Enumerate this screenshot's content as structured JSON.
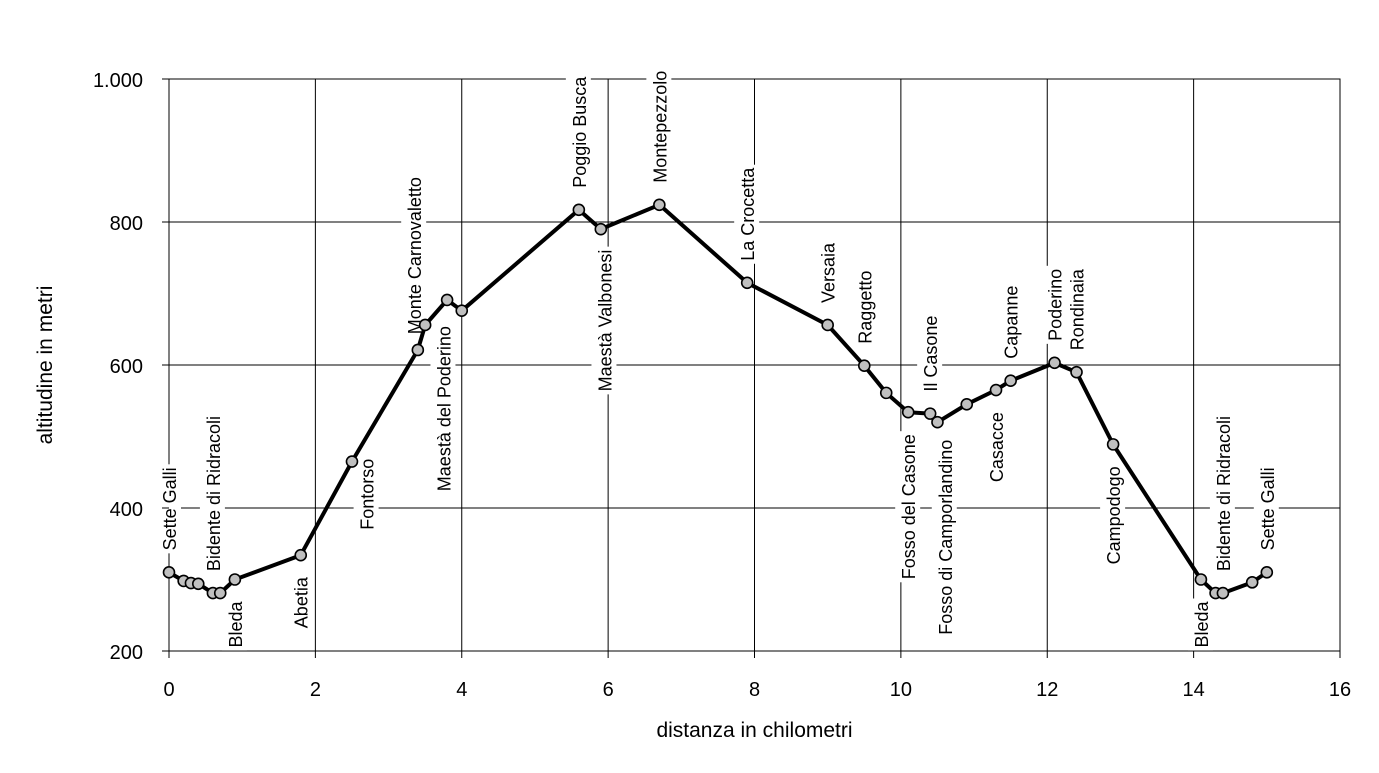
{
  "chart_data": {
    "type": "line",
    "title": "",
    "xlabel": "distanza in chilometri",
    "ylabel": "altitudine  in metri",
    "xlim": [
      0,
      16
    ],
    "ylim": [
      200,
      1000
    ],
    "x_ticks": [
      0,
      2,
      4,
      6,
      8,
      10,
      12,
      14,
      16
    ],
    "x_tick_labels": [
      "0",
      "2",
      "4",
      "6",
      "8",
      "10",
      "12",
      "14",
      "16"
    ],
    "y_ticks": [
      200,
      400,
      600,
      800,
      1000
    ],
    "y_tick_labels": [
      "200",
      "400",
      "600",
      "800",
      "1.000"
    ],
    "grid": true,
    "legend": "none",
    "series": [
      {
        "points": [
          {
            "x": 0.0,
            "y": 310
          },
          {
            "x": 0.2,
            "y": 298
          },
          {
            "x": 0.3,
            "y": 295
          },
          {
            "x": 0.4,
            "y": 294
          },
          {
            "x": 0.6,
            "y": 281
          },
          {
            "x": 0.7,
            "y": 281
          },
          {
            "x": 0.9,
            "y": 300
          },
          {
            "x": 1.8,
            "y": 334
          },
          {
            "x": 2.5,
            "y": 465
          },
          {
            "x": 3.4,
            "y": 621
          },
          {
            "x": 3.5,
            "y": 656
          },
          {
            "x": 3.8,
            "y": 691
          },
          {
            "x": 4.0,
            "y": 676
          },
          {
            "x": 5.6,
            "y": 817
          },
          {
            "x": 5.9,
            "y": 790
          },
          {
            "x": 6.7,
            "y": 824
          },
          {
            "x": 7.9,
            "y": 715
          },
          {
            "x": 9.0,
            "y": 656
          },
          {
            "x": 9.5,
            "y": 599
          },
          {
            "x": 9.8,
            "y": 561
          },
          {
            "x": 10.1,
            "y": 534
          },
          {
            "x": 10.4,
            "y": 532
          },
          {
            "x": 10.5,
            "y": 520
          },
          {
            "x": 10.9,
            "y": 545
          },
          {
            "x": 11.3,
            "y": 565
          },
          {
            "x": 11.5,
            "y": 578
          },
          {
            "x": 12.1,
            "y": 603
          },
          {
            "x": 12.4,
            "y": 590
          },
          {
            "x": 12.9,
            "y": 489
          },
          {
            "x": 14.1,
            "y": 300
          },
          {
            "x": 14.3,
            "y": 281
          },
          {
            "x": 14.4,
            "y": 281
          },
          {
            "x": 14.8,
            "y": 296
          },
          {
            "x": 15.0,
            "y": 310
          }
        ]
      }
    ],
    "annotations": [
      {
        "text": "Sette Galli",
        "x": 0.0,
        "side": "above"
      },
      {
        "text": "Bidente di Ridracoli",
        "x": 0.6,
        "side": "above"
      },
      {
        "text": "Bleda",
        "x": 0.9,
        "side": "below"
      },
      {
        "text": "Abetia",
        "x": 1.8,
        "side": "below"
      },
      {
        "text": "Fontorso",
        "x": 2.7,
        "side": "below"
      },
      {
        "text": "Monte Carnovaletto",
        "x": 3.35,
        "side": "above"
      },
      {
        "text": "Maestà del Poderino",
        "x": 3.75,
        "side": "below"
      },
      {
        "text": "Poggio Busca",
        "x": 5.6,
        "side": "above"
      },
      {
        "text": "Maestà Valbonesi",
        "x": 5.95,
        "side": "below"
      },
      {
        "text": "Montepezzolo",
        "x": 6.7,
        "side": "above"
      },
      {
        "text": "La Crocetta",
        "x": 7.9,
        "side": "above"
      },
      {
        "text": "Versaia",
        "x": 9.0,
        "side": "above"
      },
      {
        "text": "Raggetto",
        "x": 9.5,
        "side": "above"
      },
      {
        "text": "Il Casone",
        "x": 10.4,
        "side": "above"
      },
      {
        "text": "Fosso del Casone",
        "x": 10.1,
        "side": "below"
      },
      {
        "text": "Fosso di Camporlandino",
        "x": 10.6,
        "side": "below"
      },
      {
        "text": "Casacce",
        "x": 11.3,
        "side": "below"
      },
      {
        "text": "Capanne",
        "x": 11.5,
        "side": "above"
      },
      {
        "text": "Poderino",
        "x": 12.1,
        "side": "above"
      },
      {
        "text": "Rondinaia",
        "x": 12.4,
        "side": "above"
      },
      {
        "text": "Campodogo",
        "x": 12.9,
        "side": "below"
      },
      {
        "text": "Bleda",
        "x": 14.1,
        "side": "below"
      },
      {
        "text": "Bidente di Ridracoli",
        "x": 14.4,
        "side": "above"
      },
      {
        "text": "Sette Galli",
        "x": 15.0,
        "side": "above"
      }
    ]
  }
}
